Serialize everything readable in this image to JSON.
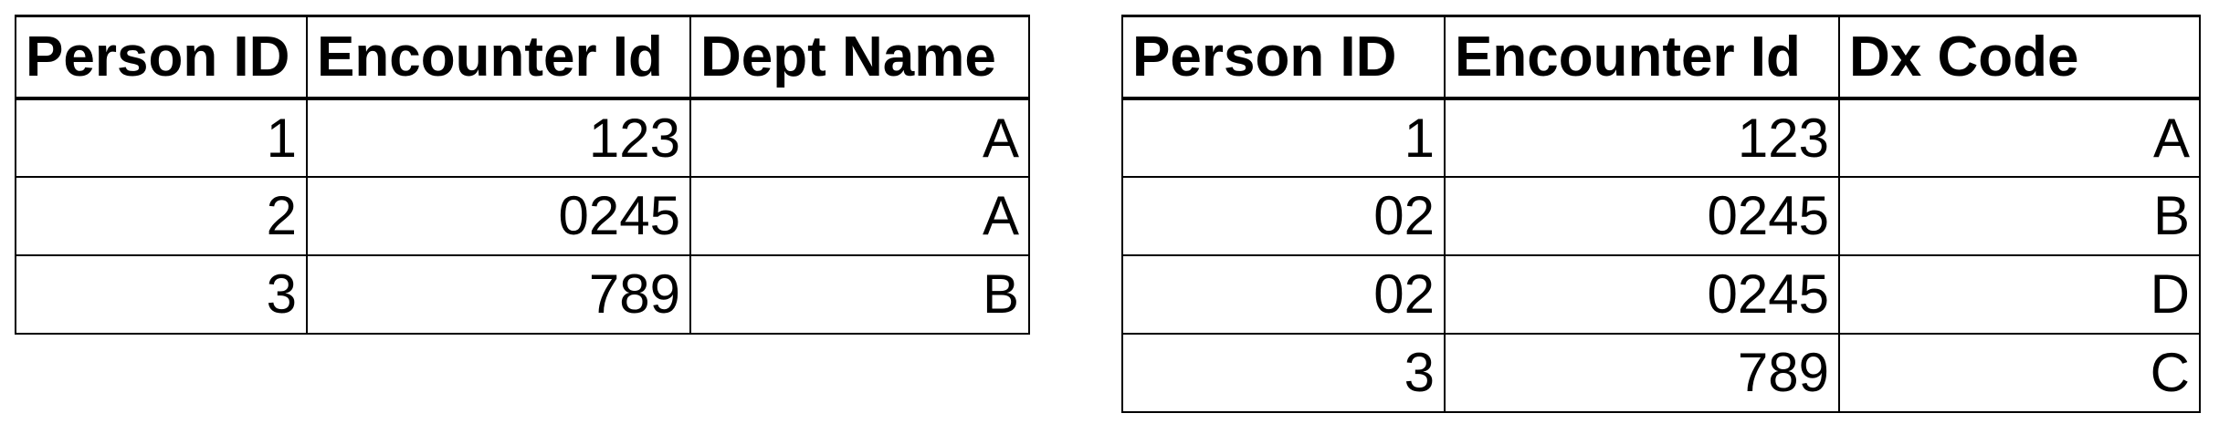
{
  "left_table": {
    "headers": [
      "Person ID",
      "Encounter Id",
      "Dept Name"
    ],
    "rows": [
      [
        "1",
        "123",
        "A"
      ],
      [
        "2",
        "0245",
        "A"
      ],
      [
        "3",
        "789",
        "B"
      ]
    ]
  },
  "right_table": {
    "headers": [
      "Person ID",
      "Encounter Id",
      "Dx Code"
    ],
    "rows": [
      [
        "1",
        "123",
        "A"
      ],
      [
        "02",
        "0245",
        "B"
      ],
      [
        "02",
        "0245",
        "D"
      ],
      [
        "3",
        "789",
        "C"
      ]
    ]
  }
}
